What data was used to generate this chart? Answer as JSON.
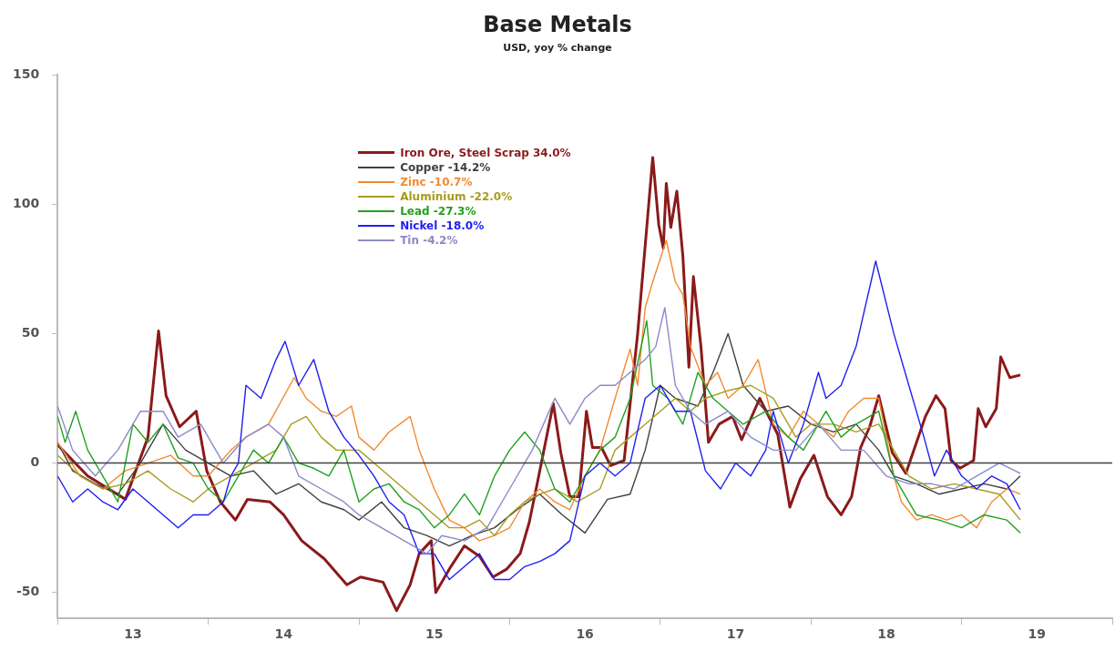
{
  "chart_data": {
    "type": "line",
    "title": "Base Metals",
    "subtitle": "USD, yoy % change",
    "xlim": [
      12.5,
      19.5
    ],
    "xticks": [
      {
        "value": 12.5,
        "label": null
      },
      13,
      {
        "value": 13.5,
        "label": null
      },
      14,
      {
        "value": 14.5,
        "label": null
      },
      15,
      {
        "value": 15.5,
        "label": null
      },
      16,
      {
        "value": 16.5,
        "label": null
      },
      17,
      {
        "value": 17.5,
        "label": null
      },
      18,
      {
        "value": 18.5,
        "label": null
      },
      19,
      {
        "value": 19.5,
        "label": null
      }
    ],
    "ylim": [
      -60,
      150
    ],
    "yticks": [
      -50,
      0,
      50,
      100,
      150
    ],
    "grid": false,
    "legend": "top left",
    "marker": "none",
    "line_style": "solid",
    "ref_lines": [
      {
        "axis": "y",
        "value": 0,
        "color": "#404040"
      }
    ],
    "series": [
      {
        "name": "Iron Ore, Steel Scrap 34.0%",
        "color": "#8b1a1a",
        "x": [
          12.5,
          12.7,
          12.95,
          13.1,
          13.17,
          13.22,
          13.31,
          13.42,
          13.49,
          13.58,
          13.68,
          13.76,
          13.91,
          14.0,
          14.12,
          14.27,
          14.42,
          14.51,
          14.66,
          14.75,
          14.84,
          14.9,
          14.98,
          15.01,
          15.11,
          15.2,
          15.3,
          15.39,
          15.48,
          15.57,
          15.63,
          15.69,
          15.79,
          15.84,
          15.9,
          15.96,
          16.01,
          16.05,
          16.11,
          16.17,
          16.26,
          16.35,
          16.45,
          16.49,
          16.52,
          16.54,
          16.57,
          16.61,
          16.65,
          16.69,
          16.72,
          16.77,
          16.82,
          16.89,
          16.98,
          17.04,
          17.16,
          17.28,
          17.36,
          17.43,
          17.52,
          17.61,
          17.7,
          17.77,
          17.83,
          17.89,
          17.95,
          18.04,
          18.13,
          18.26,
          18.33,
          18.39,
          18.43,
          18.49,
          18.58,
          18.61,
          18.66,
          18.73,
          18.76,
          18.82,
          18.89
        ],
        "values": [
          7,
          -5,
          -14,
          10,
          51,
          26,
          14,
          20,
          -3,
          -15,
          -22,
          -14,
          -15,
          -20,
          -30,
          -37,
          -47,
          -44,
          -46,
          -57,
          -47,
          -35,
          -30,
          -50,
          -40,
          -32,
          -36,
          -44,
          -41,
          -35,
          -23,
          -6,
          23,
          4,
          -13,
          -13,
          20,
          6,
          6,
          -1,
          1,
          50,
          118,
          92,
          83,
          108,
          91,
          105,
          80,
          37,
          72,
          45,
          8,
          15,
          18,
          9,
          25,
          11,
          -17,
          -6,
          3,
          -13,
          -20,
          -13,
          6,
          14,
          26,
          4,
          -4,
          18,
          26,
          21,
          1,
          -2,
          1,
          21,
          14,
          21,
          41,
          33,
          34
        ]
      },
      {
        "name": "Copper -14.2%",
        "color": "#404040",
        "x": [
          12.5,
          12.6,
          12.75,
          12.9,
          13.05,
          13.2,
          13.35,
          13.5,
          13.65,
          13.8,
          13.95,
          14.1,
          14.25,
          14.4,
          14.5,
          14.65,
          14.8,
          14.95,
          15.1,
          15.25,
          15.4,
          15.55,
          15.7,
          15.85,
          16.0,
          16.15,
          16.3,
          16.4,
          16.5,
          16.6,
          16.75,
          16.85,
          16.95,
          17.05,
          17.2,
          17.35,
          17.5,
          17.65,
          17.8,
          17.95,
          18.05,
          18.2,
          18.35,
          18.5,
          18.65,
          18.8,
          18.89
        ],
        "values": [
          8,
          -3,
          -8,
          -12,
          0,
          15,
          5,
          0,
          -5,
          -3,
          -12,
          -8,
          -15,
          -18,
          -22,
          -15,
          -25,
          -28,
          -32,
          -28,
          -25,
          -18,
          -12,
          -20,
          -27,
          -14,
          -12,
          5,
          30,
          25,
          22,
          35,
          50,
          30,
          20,
          22,
          15,
          12,
          15,
          5,
          -5,
          -8,
          -12,
          -10,
          -8,
          -10,
          -5
        ]
      },
      {
        "name": "Zinc -10.7%",
        "color": "#f28a30",
        "x": [
          12.5,
          12.65,
          12.8,
          12.95,
          13.1,
          13.25,
          13.4,
          13.5,
          13.65,
          13.75,
          13.9,
          14.07,
          14.15,
          14.25,
          14.35,
          14.45,
          14.5,
          14.6,
          14.7,
          14.84,
          14.9,
          15.0,
          15.1,
          15.2,
          15.3,
          15.4,
          15.5,
          15.6,
          15.7,
          15.8,
          15.9,
          16.0,
          16.1,
          16.2,
          16.3,
          16.35,
          16.4,
          16.45,
          16.54,
          16.6,
          16.65,
          16.7,
          16.8,
          16.88,
          16.95,
          17.05,
          17.15,
          17.25,
          17.35,
          17.45,
          17.55,
          17.65,
          17.75,
          17.85,
          17.95,
          18.05,
          18.1,
          18.2,
          18.3,
          18.4,
          18.5,
          18.6,
          18.7,
          18.8,
          18.89
        ],
        "values": [
          8,
          -5,
          -10,
          -3,
          0,
          3,
          -5,
          -5,
          5,
          10,
          15,
          33,
          25,
          20,
          18,
          22,
          10,
          5,
          12,
          18,
          5,
          -10,
          -22,
          -25,
          -30,
          -28,
          -25,
          -15,
          -10,
          -15,
          -18,
          -5,
          5,
          25,
          44,
          30,
          60,
          70,
          86,
          70,
          65,
          45,
          30,
          35,
          25,
          30,
          40,
          15,
          10,
          20,
          15,
          10,
          20,
          25,
          25,
          -5,
          -15,
          -22,
          -20,
          -22,
          -20,
          -25,
          -15,
          -10,
          -12
        ]
      },
      {
        "name": "Aluminium -22.0%",
        "color": "#a89c20",
        "x": [
          12.5,
          12.65,
          12.8,
          12.95,
          13.1,
          13.25,
          13.4,
          13.5,
          13.65,
          13.8,
          13.95,
          14.05,
          14.15,
          14.25,
          14.35,
          14.5,
          14.6,
          14.7,
          14.8,
          14.9,
          15.0,
          15.1,
          15.2,
          15.3,
          15.4,
          15.5,
          15.6,
          15.7,
          15.8,
          15.95,
          16.1,
          16.2,
          16.3,
          16.4,
          16.5,
          16.6,
          16.7,
          16.8,
          16.95,
          17.1,
          17.25,
          17.4,
          17.5,
          17.65,
          17.8,
          17.95,
          18.05,
          18.15,
          18.3,
          18.45,
          18.6,
          18.75,
          18.89
        ],
        "values": [
          3,
          -5,
          -10,
          -8,
          -3,
          -10,
          -15,
          -10,
          -5,
          0,
          5,
          15,
          18,
          10,
          5,
          5,
          0,
          -5,
          -10,
          -15,
          -20,
          -25,
          -25,
          -22,
          -28,
          -20,
          -15,
          -12,
          -10,
          -15,
          -10,
          5,
          10,
          15,
          20,
          25,
          20,
          25,
          28,
          30,
          25,
          10,
          15,
          15,
          12,
          15,
          5,
          -5,
          -10,
          -8,
          -10,
          -12,
          -22
        ]
      },
      {
        "name": "Lead -27.3%",
        "color": "#20a020",
        "x": [
          12.5,
          12.55,
          12.62,
          12.7,
          12.8,
          12.9,
          13.0,
          13.1,
          13.2,
          13.3,
          13.4,
          13.5,
          13.6,
          13.7,
          13.8,
          13.9,
          14.0,
          14.1,
          14.2,
          14.3,
          14.4,
          14.5,
          14.6,
          14.7,
          14.8,
          14.9,
          15.0,
          15.1,
          15.2,
          15.3,
          15.4,
          15.5,
          15.6,
          15.7,
          15.8,
          15.9,
          16.0,
          16.1,
          16.2,
          16.3,
          16.41,
          16.45,
          16.55,
          16.65,
          16.75,
          16.85,
          16.95,
          17.05,
          17.2,
          17.35,
          17.45,
          17.6,
          17.7,
          17.8,
          17.95,
          18.05,
          18.2,
          18.35,
          18.5,
          18.65,
          18.8,
          18.89
        ],
        "values": [
          18,
          8,
          20,
          5,
          -5,
          -15,
          15,
          8,
          15,
          2,
          0,
          -10,
          -15,
          -5,
          5,
          0,
          10,
          0,
          -2,
          -5,
          5,
          -15,
          -10,
          -8,
          -15,
          -18,
          -25,
          -20,
          -12,
          -20,
          -5,
          5,
          12,
          5,
          -10,
          -15,
          -5,
          5,
          10,
          25,
          55,
          30,
          25,
          15,
          35,
          25,
          20,
          15,
          20,
          10,
          5,
          20,
          10,
          15,
          20,
          -5,
          -20,
          -22,
          -25,
          -20,
          -22,
          -27
        ]
      },
      {
        "name": "Nickel -18.0%",
        "color": "#2020f0",
        "x": [
          12.5,
          12.6,
          12.7,
          12.8,
          12.9,
          13.0,
          13.1,
          13.2,
          13.3,
          13.4,
          13.5,
          13.6,
          13.65,
          13.7,
          13.75,
          13.85,
          13.95,
          14.01,
          14.1,
          14.2,
          14.3,
          14.4,
          14.5,
          14.6,
          14.7,
          14.8,
          14.9,
          15.0,
          15.1,
          15.2,
          15.3,
          15.4,
          15.5,
          15.6,
          15.7,
          15.8,
          15.9,
          16.0,
          16.1,
          16.2,
          16.3,
          16.4,
          16.5,
          16.6,
          16.7,
          16.8,
          16.9,
          17.0,
          17.1,
          17.2,
          17.25,
          17.35,
          17.45,
          17.55,
          17.6,
          17.7,
          17.8,
          17.93,
          18.05,
          18.15,
          18.25,
          18.32,
          18.4,
          18.5,
          18.6,
          18.7,
          18.8,
          18.89
        ],
        "values": [
          -5,
          -15,
          -10,
          -15,
          -18,
          -10,
          -15,
          -20,
          -25,
          -20,
          -20,
          -15,
          -5,
          0,
          30,
          25,
          40,
          47,
          30,
          40,
          20,
          10,
          3,
          -5,
          -15,
          -20,
          -35,
          -35,
          -45,
          -40,
          -35,
          -45,
          -45,
          -40,
          -38,
          -35,
          -30,
          -5,
          0,
          -5,
          0,
          25,
          30,
          20,
          20,
          -3,
          -10,
          0,
          -5,
          5,
          20,
          0,
          15,
          35,
          25,
          30,
          45,
          78,
          50,
          30,
          10,
          -5,
          5,
          -5,
          -10,
          -5,
          -8,
          -18
        ]
      },
      {
        "name": "Tin -4.2%",
        "color": "#8a8ac8",
        "x": [
          12.5,
          12.6,
          12.75,
          12.9,
          13.05,
          13.2,
          13.3,
          13.45,
          13.6,
          13.75,
          13.9,
          14.0,
          14.1,
          14.25,
          14.4,
          14.5,
          14.65,
          14.8,
          14.95,
          15.05,
          15.2,
          15.35,
          15.5,
          15.65,
          15.8,
          15.9,
          16.0,
          16.1,
          16.2,
          16.3,
          16.4,
          16.47,
          16.53,
          16.6,
          16.7,
          16.8,
          16.95,
          17.1,
          17.25,
          17.4,
          17.55,
          17.7,
          17.85,
          18.0,
          18.15,
          18.3,
          18.45,
          18.6,
          18.75,
          18.89
        ],
        "values": [
          22,
          5,
          -5,
          5,
          20,
          20,
          10,
          15,
          0,
          10,
          15,
          10,
          -5,
          -10,
          -15,
          -20,
          -25,
          -30,
          -35,
          -28,
          -30,
          -25,
          -10,
          5,
          25,
          15,
          25,
          30,
          30,
          35,
          40,
          45,
          60,
          30,
          20,
          15,
          20,
          10,
          5,
          5,
          15,
          5,
          5,
          -5,
          -8,
          -8,
          -10,
          -5,
          0,
          -4
        ]
      }
    ]
  }
}
